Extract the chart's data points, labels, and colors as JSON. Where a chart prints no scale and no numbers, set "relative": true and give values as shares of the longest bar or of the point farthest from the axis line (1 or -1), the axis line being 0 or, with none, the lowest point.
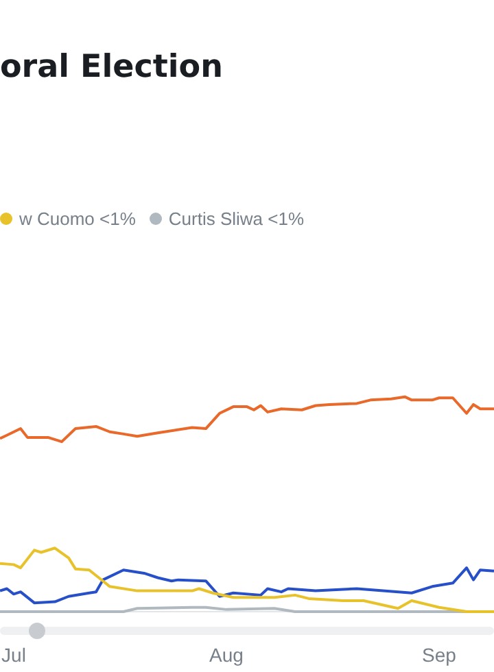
{
  "chart_data": {
    "type": "line",
    "title": "oral Election",
    "relative": true,
    "legend": "top left",
    "marker": "none",
    "line_style": "solid",
    "xlim": [
      "--06-29",
      "--09-09"
    ],
    "xticks": [
      {
        "value": "--07-01",
        "label": "Jul"
      },
      {
        "value": "--08-01",
        "label": "Aug"
      },
      {
        "value": "--09-01",
        "label": "Sep"
      }
    ],
    "series": [
      {
        "color": "#e8692a",
        "x": [
          "--06-29",
          "--06-30",
          "--07-02",
          "--07-03",
          "--07-06",
          "--07-08",
          "--07-10",
          "--07-13",
          "--07-15",
          "--07-17",
          "--07-19",
          "--07-22",
          "--07-27",
          "--07-29",
          "--07-31",
          "--08-02",
          "--08-04",
          "--08-05",
          "--08-06",
          "--08-07",
          "--08-09",
          "--08-12",
          "--08-14",
          "--08-16",
          "--08-20",
          "--08-22",
          "--08-25",
          "--08-27",
          "--08-28",
          "--08-31",
          "--09-01",
          "--09-03",
          "--09-05",
          "--09-06",
          "--09-07",
          "--09-09"
        ],
        "values": [
          0.806,
          0.821,
          0.852,
          0.811,
          0.811,
          0.791,
          0.852,
          0.862,
          0.837,
          0.827,
          0.816,
          0.832,
          0.857,
          0.852,
          0.923,
          0.954,
          0.954,
          0.939,
          0.959,
          0.929,
          0.944,
          0.939,
          0.959,
          0.964,
          0.969,
          0.985,
          0.99,
          1,
          0.985,
          0.985,
          0.995,
          0.995,
          0.923,
          0.964,
          0.944,
          0.944
        ]
      },
      {
        "name": "w Cuomo <1%",
        "color": "#e8c22a",
        "x": [
          "--06-29",
          "--07-01",
          "--07-02",
          "--07-04",
          "--07-05",
          "--07-07",
          "--07-09",
          "--07-10",
          "--07-12",
          "--07-14",
          "--07-15",
          "--07-19",
          "--07-23",
          "--07-27",
          "--07-28",
          "--07-30",
          "--08-02",
          "--08-08",
          "--08-11",
          "--08-13",
          "--08-18",
          "--08-21",
          "--08-26",
          "--08-28",
          "--09-01",
          "--09-05",
          "--09-09"
        ],
        "values": [
          0.224,
          0.219,
          0.204,
          0.286,
          0.276,
          0.296,
          0.25,
          0.199,
          0.194,
          0.143,
          0.117,
          0.097,
          0.097,
          0.097,
          0.107,
          0.087,
          0.066,
          0.066,
          0.077,
          0.061,
          0.051,
          0.051,
          0.015,
          0.051,
          0.02,
          0,
          0
        ]
      },
      {
        "color": "#2750c8",
        "x": [
          "--06-29",
          "--06-30",
          "--07-01",
          "--07-02",
          "--07-04",
          "--07-07",
          "--07-09",
          "--07-12",
          "--07-13",
          "--07-14",
          "--07-17",
          "--07-20",
          "--07-22",
          "--07-24",
          "--07-25",
          "--07-29",
          "--07-31",
          "--08-02",
          "--08-06",
          "--08-07",
          "--08-09",
          "--08-10",
          "--08-14",
          "--08-20",
          "--08-28",
          "--08-31",
          "--09-03",
          "--09-05",
          "--09-06",
          "--09-07",
          "--09-09"
        ],
        "values": [
          0.097,
          0.107,
          0.082,
          0.092,
          0.041,
          0.046,
          0.071,
          0.087,
          0.092,
          0.148,
          0.194,
          0.179,
          0.158,
          0.143,
          0.148,
          0.143,
          0.071,
          0.087,
          0.077,
          0.107,
          0.092,
          0.107,
          0.097,
          0.107,
          0.087,
          0.117,
          0.133,
          0.204,
          0.148,
          0.194,
          0.189
        ]
      },
      {
        "name": "Curtis Sliwa <1%",
        "color": "#b0b8c0",
        "x": [
          "--06-29",
          "--07-17",
          "--07-19",
          "--07-27",
          "--07-29",
          "--08-01",
          "--08-08",
          "--08-11",
          "--09-09"
        ],
        "values": [
          0,
          0,
          0.015,
          0.02,
          0.02,
          0.01,
          0.015,
          0,
          0
        ]
      }
    ]
  }
}
